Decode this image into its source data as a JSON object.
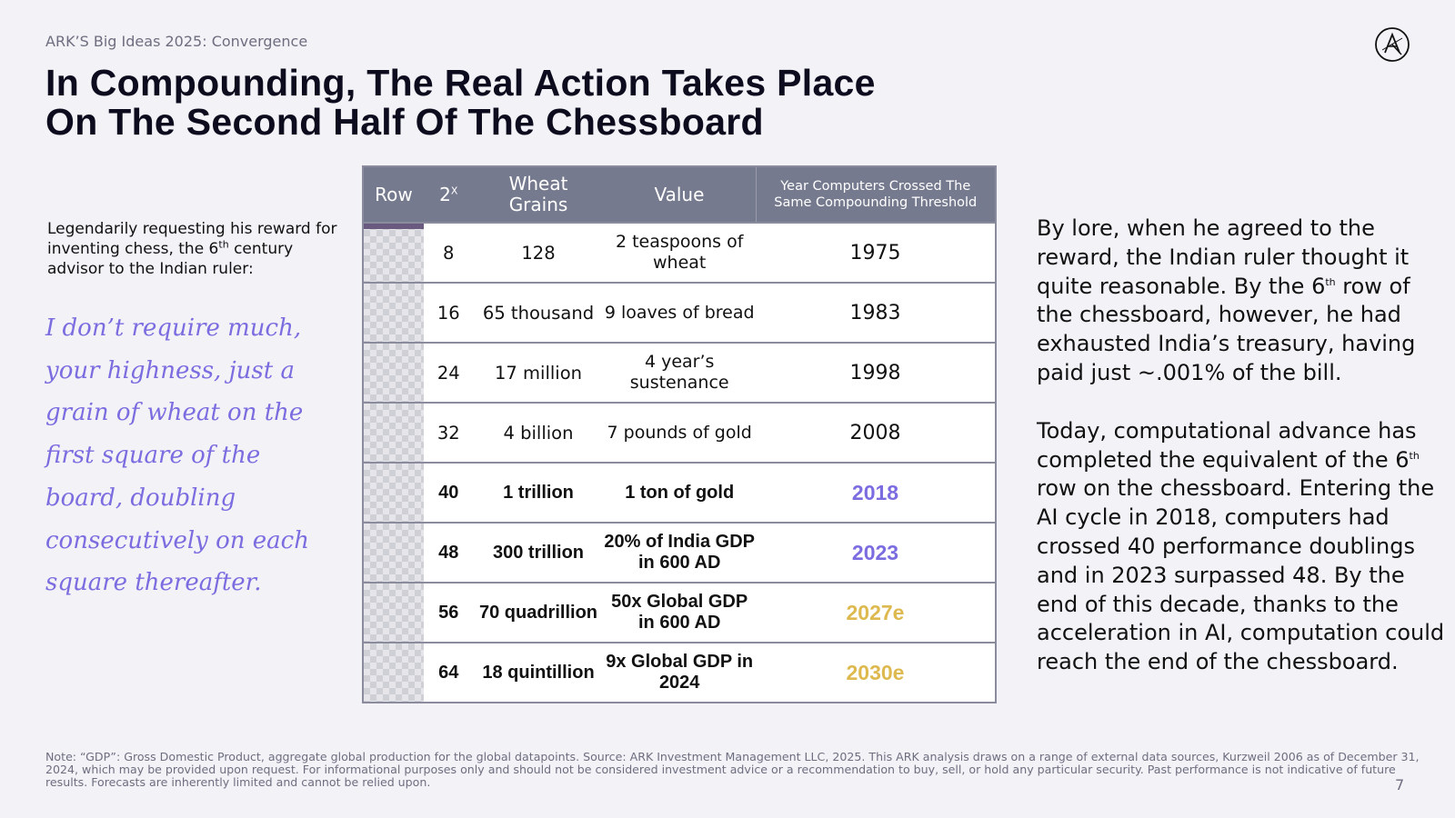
{
  "header": {
    "kicker": "ARK’S Big Ideas 2025: Convergence",
    "title_line1": "In Compounding, The Real Action Takes Place",
    "title_line2": "On The Second Half Of The Chessboard",
    "logo_icon": "ark-logo-icon"
  },
  "intro": {
    "text_before": "Legendarily requesting his reward for inventing chess, the 6",
    "sup": "th",
    "text_after": " century advisor to the Indian ruler:"
  },
  "quote": "I don’t require much, your highness, just a grain of wheat on the first square of the board, doubling consecutively on each square thereafter.",
  "table": {
    "headers": {
      "row": "Row",
      "power_base": "2",
      "power_exp": "X",
      "wheat_line1": "Wheat",
      "wheat_line2": "Grains",
      "value": "Value",
      "year_line1": "Year Computers Crossed The",
      "year_line2": "Same Compounding Threshold"
    },
    "rows": [
      {
        "power": "8",
        "wheat": "128",
        "value": "2 teaspoons of wheat",
        "year": "1975",
        "year_color": "#111111",
        "emphasis": false
      },
      {
        "power": "16",
        "wheat": "65 thousand",
        "value": "9 loaves of bread",
        "year": "1983",
        "year_color": "#111111",
        "emphasis": false
      },
      {
        "power": "24",
        "wheat": "17 million",
        "value": "4 year’s sustenance",
        "year": "1998",
        "year_color": "#111111",
        "emphasis": false
      },
      {
        "power": "32",
        "wheat": "4 billion",
        "value": "7 pounds of gold",
        "year": "2008",
        "year_color": "#111111",
        "emphasis": false
      },
      {
        "power": "40",
        "wheat": "1 trillion",
        "value": "1 ton of gold",
        "year": "2018",
        "year_color": "#7b6ce0",
        "emphasis": true
      },
      {
        "power": "48",
        "wheat": "300 trillion",
        "value": "20% of India GDP in 600 AD",
        "year": "2023",
        "year_color": "#7b6ce0",
        "emphasis": true
      },
      {
        "power": "56",
        "wheat": "70 quadrillion",
        "value": "50x Global GDP in 600 AD",
        "year": "2027e",
        "year_color": "#ddb94f",
        "emphasis": true
      },
      {
        "power": "64",
        "wheat": "18 quintillion",
        "value": "9x Global GDP in 2024",
        "year": "2030e",
        "year_color": "#ddb94f",
        "emphasis": true
      }
    ]
  },
  "side": {
    "p1_before": "By lore, when he agreed to the reward, the Indian ruler thought it quite reasonable. By the 6",
    "p1_sup": "th",
    "p1_after": " row of the chessboard, however, he had exhausted India’s treasury, having paid just ~.001% of the bill.",
    "p2_before": "Today, computational advance has completed the equivalent of the 6",
    "p2_sup": "th",
    "p2_after": " row on the chessboard. Entering the AI cycle in 2018, computers had crossed 40 performance doublings and in 2023 surpassed 48. By the end of this decade, thanks to the acceleration in AI, computation could reach the end of the chessboard."
  },
  "footer": {
    "note": "Note: “GDP”: Gross Domestic Product, aggregate global production for the global datapoints. Source: ARK Investment Management LLC, 2025. This ARK analysis draws on a range of external data sources, Kurzweil 2006 as of December 31, 2024, which may be provided upon request. For informational purposes only and should not be considered investment advice or a recommendation to buy, sell, or hold any particular security. Past performance is not indicative of future results. Forecasts are inherently limited and cannot be relied upon.",
    "page_number": "7"
  }
}
